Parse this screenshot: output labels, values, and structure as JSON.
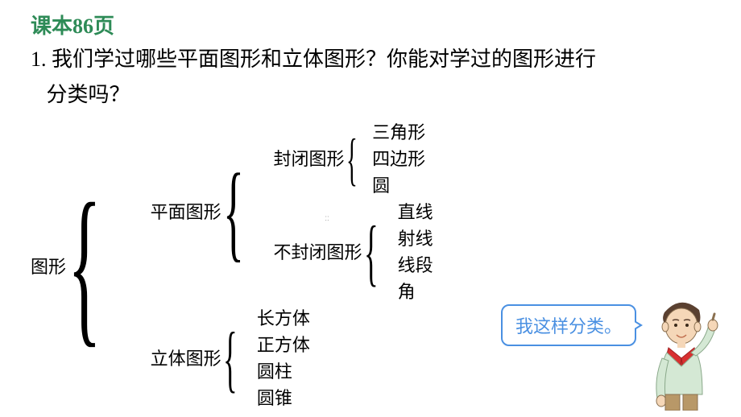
{
  "colors": {
    "header": "#2e8b57",
    "body_text": "#000000",
    "bubble_border": "#4a90e2",
    "bubble_text": "#4a90e2",
    "watermark": "#a6a6a6"
  },
  "fonts": {
    "family": "KaiTi",
    "header_size": 26,
    "body_size": 26,
    "tree_size": 22,
    "bubble_size": 22
  },
  "header": "课本86页",
  "question": {
    "number": "1.",
    "line1": "我们学过哪些平面图形和立体图形？你能对学过的图形进行",
    "line2": "分类吗？"
  },
  "tree": {
    "root": "图形",
    "children": [
      {
        "label": "平面图形",
        "children": [
          {
            "label": "封闭图形",
            "leaves": [
              "三角形",
              "四边形",
              "圆"
            ]
          },
          {
            "label": "不封闭图形",
            "leaves": [
              "直线",
              "射线",
              "线段",
              "角"
            ]
          }
        ]
      },
      {
        "label": "立体图形",
        "leaves": [
          "长方体",
          "正方体",
          "圆柱",
          "圆锥"
        ]
      }
    ]
  },
  "bubble_text": "我这样分类。",
  "watermark": "::",
  "character": {
    "skin": "#f5d7b8",
    "hair": "#5a4030",
    "shirt": "#d4e8d4",
    "scarf": "#d83030",
    "outline": "#8a7050"
  }
}
